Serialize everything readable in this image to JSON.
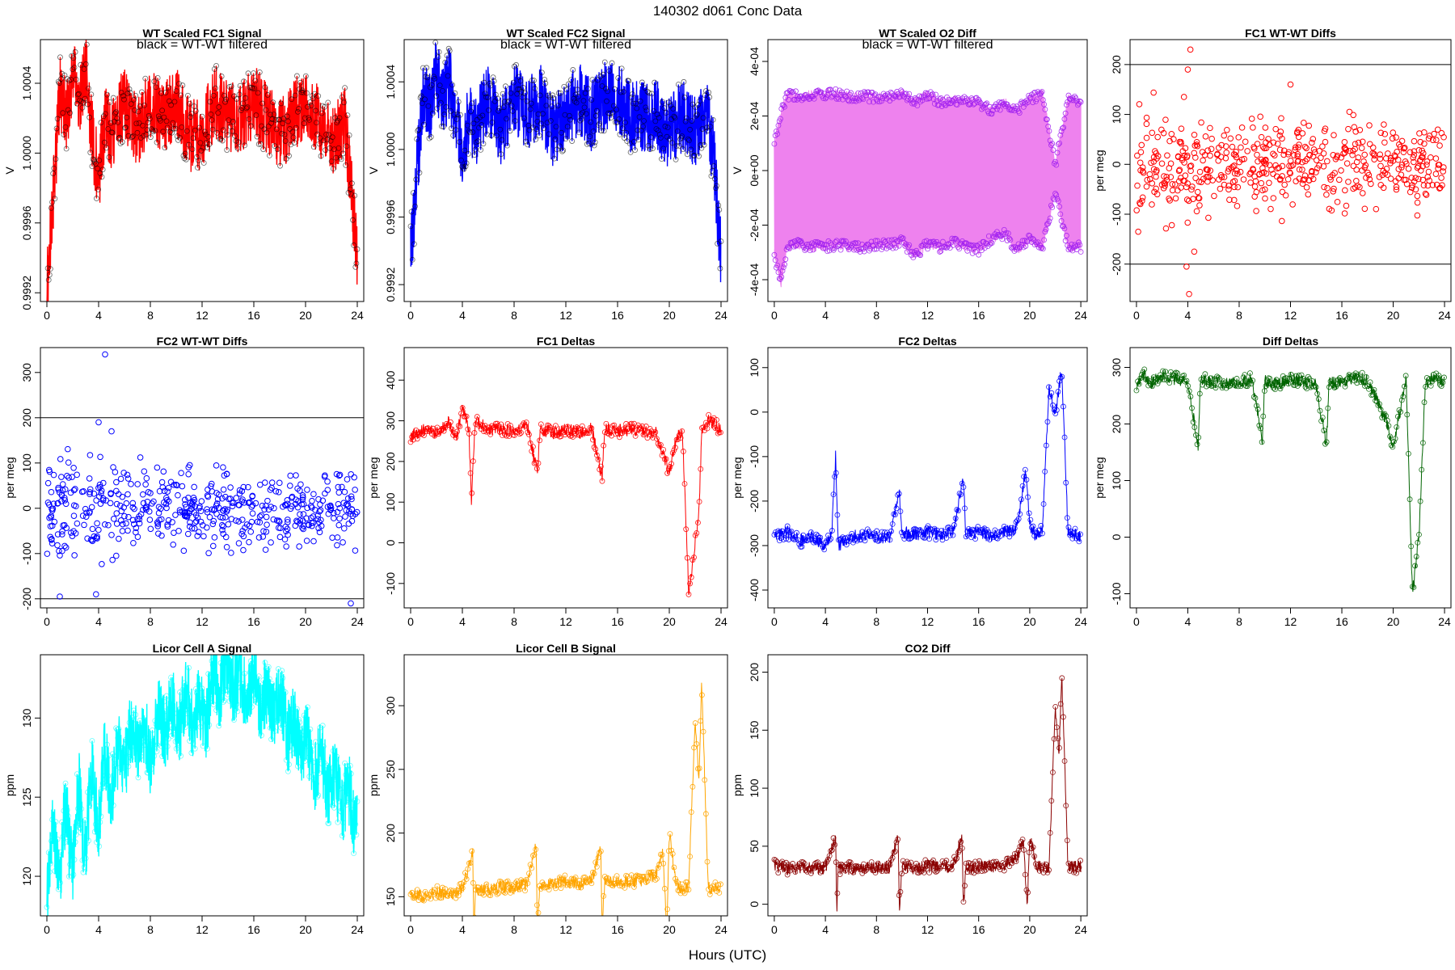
{
  "figure": {
    "title": "140302   d061   Conc Data",
    "xlabel": "Hours (UTC)",
    "x_ticks": [
      0,
      4,
      8,
      12,
      16,
      20,
      24
    ],
    "xlim": [
      -0.5,
      24.5
    ]
  },
  "chart_data": [
    {
      "id": "fc1-signal",
      "type": "line",
      "title": "WT Scaled FC1 Signal",
      "note": "black = WT-WT filtered",
      "ylabel": "V",
      "ylim": [
        0.99915,
        1.00065
      ],
      "y_ticks": [
        {
          "v": 0.9992,
          "label": "0.9992"
        },
        {
          "v": 0.9996,
          "label": "0.9996"
        },
        {
          "v": 1.0,
          "label": "1.0000"
        },
        {
          "v": 1.0004,
          "label": "1.0004"
        }
      ],
      "color": "#ff0000",
      "marker_color": "#000000",
      "series": [
        {
          "x": [
            0,
            0.5,
            1,
            1.5,
            2,
            2.5,
            3,
            3.5,
            4,
            4.5,
            5,
            6,
            7,
            8,
            9,
            10,
            11,
            12,
            13,
            14,
            15,
            16,
            17,
            18,
            19,
            20,
            21,
            22,
            23,
            23.5,
            24
          ],
          "y": [
            0.99925,
            0.99975,
            1.00035,
            1.0002,
            1.00045,
            1.0003,
            1.0005,
            1.0001,
            0.99985,
            1.0002,
            1.0001,
            1.0003,
            1.0001,
            1.0003,
            1.0002,
            1.0003,
            1.0001,
            1.0001,
            1.0003,
            1.0002,
            1.0002,
            1.0003,
            1.0002,
            1.0001,
            1.0002,
            1.0003,
            1.0002,
            1.00005,
            1.0002,
            0.99985,
            0.99935
          ]
        }
      ]
    },
    {
      "id": "fc2-signal",
      "type": "line",
      "title": "WT Scaled FC2 Signal",
      "note": "black = WT-WT filtered",
      "ylabel": "V",
      "ylim": [
        0.9991,
        1.00065
      ],
      "y_ticks": [
        {
          "v": 0.9992,
          "label": "0.9992"
        },
        {
          "v": 0.9996,
          "label": "0.9996"
        },
        {
          "v": 1.0,
          "label": "1.0000"
        },
        {
          "v": 1.0004,
          "label": "1.0004"
        }
      ],
      "color": "#0000ff",
      "marker_color": "#000000",
      "series": [
        {
          "x": [
            0,
            0.5,
            1,
            1.5,
            2,
            2.5,
            3,
            3.5,
            4,
            4.5,
            5,
            6,
            7,
            8,
            9,
            10,
            11,
            12,
            13,
            14,
            15,
            16,
            17,
            18,
            19,
            20,
            21,
            22,
            23,
            23.5,
            24
          ],
          "y": [
            0.99935,
            0.9999,
            1.0003,
            1.00025,
            1.00045,
            1.0003,
            1.0004,
            1.0002,
            0.99995,
            1.0002,
            1.0001,
            1.0003,
            1.0001,
            1.0003,
            1.0002,
            1.0003,
            1.0001,
            1.0002,
            1.0003,
            1.0002,
            1.0003,
            1.0003,
            1.0002,
            1.0002,
            1.0002,
            1.0001,
            1.0002,
            1.0001,
            1.0002,
            0.9999,
            0.99935
          ]
        }
      ]
    },
    {
      "id": "o2-diff",
      "type": "line",
      "title": "WT Scaled O2 Diff",
      "note": "black = WT-WT filtered",
      "ylabel": "V",
      "ylim": [
        -0.00048,
        0.00048
      ],
      "y_ticks": [
        {
          "v": -0.0004,
          "label": "-4e-04"
        },
        {
          "v": -0.0002,
          "label": "-2e-04"
        },
        {
          "v": 0,
          "label": "0e+00"
        },
        {
          "v": 0.0002,
          "label": "2e-04"
        },
        {
          "v": 0.0004,
          "label": "4e-04"
        }
      ],
      "color": "#ee82ee",
      "marker_color": "#a020f0",
      "series": [
        {
          "name": "upper",
          "x": [
            0,
            0.5,
            1,
            2,
            3,
            4,
            5,
            6,
            7,
            8,
            9,
            10,
            11,
            12,
            13,
            14,
            15,
            16,
            17,
            18,
            19,
            20,
            21,
            22,
            23,
            24
          ],
          "y": [
            0.0001,
            0.0002,
            0.00028,
            0.00027,
            0.00028,
            0.00028,
            0.00028,
            0.00027,
            0.00027,
            0.00027,
            0.00027,
            0.00028,
            0.00025,
            0.00028,
            0.00025,
            0.00026,
            0.00025,
            0.00025,
            0.00022,
            0.00025,
            0.00022,
            0.00026,
            0.00028,
            2e-05,
            0.00026,
            0.00025
          ]
        },
        {
          "name": "lower",
          "x": [
            0,
            0.5,
            1,
            2,
            3,
            4,
            5,
            6,
            7,
            8,
            9,
            10,
            11,
            12,
            13,
            14,
            15,
            16,
            17,
            18,
            19,
            20,
            21,
            22,
            23,
            24
          ],
          "y": [
            -0.0003,
            -0.00042,
            -0.00028,
            -0.00027,
            -0.00028,
            -0.00028,
            -0.00027,
            -0.00028,
            -0.00028,
            -0.00027,
            -0.00027,
            -0.00026,
            -0.00031,
            -0.00027,
            -0.00028,
            -0.00026,
            -0.00028,
            -0.00029,
            -0.00025,
            -0.00023,
            -0.00029,
            -0.00025,
            -0.00028,
            -8e-05,
            -0.00028,
            -0.00028
          ]
        }
      ]
    },
    {
      "id": "fc1-wtwt",
      "type": "scatter",
      "title": "FC1 WT-WT Diffs",
      "ylabel": "per meg",
      "ylim": [
        -275,
        250
      ],
      "y_ticks": [
        {
          "v": -200,
          "label": "-200"
        },
        {
          "v": -100,
          "label": "-100"
        },
        {
          "v": 0,
          "label": "0"
        },
        {
          "v": 100,
          "label": "100"
        },
        {
          "v": 200,
          "label": "200"
        }
      ],
      "hlines": [
        200,
        -200
      ],
      "color": "#ff0000",
      "spread": 50,
      "seed": 11,
      "outliers": [
        {
          "x": 4,
          "y": 190
        },
        {
          "x": 4.2,
          "y": 230
        },
        {
          "x": 3.9,
          "y": -205
        },
        {
          "x": 4.1,
          "y": -260
        },
        {
          "x": 3.7,
          "y": 135
        },
        {
          "x": 12,
          "y": 160
        },
        {
          "x": 4.5,
          "y": -175
        }
      ]
    },
    {
      "id": "fc2-wtwt",
      "type": "scatter",
      "title": "FC2 WT-WT Diffs",
      "ylabel": "per meg",
      "ylim": [
        -220,
        355
      ],
      "y_ticks": [
        {
          "v": -200,
          "label": "-200"
        },
        {
          "v": -100,
          "label": "-100"
        },
        {
          "v": 0,
          "label": "0"
        },
        {
          "v": 100,
          "label": "100"
        },
        {
          "v": 200,
          "label": "200"
        },
        {
          "v": 300,
          "label": "300"
        }
      ],
      "hlines": [
        200,
        -200
      ],
      "color": "#0000ff",
      "spread": 50,
      "seed": 23,
      "outliers": [
        {
          "x": 4.5,
          "y": 340
        },
        {
          "x": 4,
          "y": 190
        },
        {
          "x": 1,
          "y": -195
        },
        {
          "x": 3.8,
          "y": -190
        },
        {
          "x": 23.5,
          "y": -210
        },
        {
          "x": 5,
          "y": 170
        }
      ]
    },
    {
      "id": "fc1-deltas",
      "type": "line",
      "title": "FC1 Deltas",
      "ylabel": "per meg",
      "ylim": [
        -160,
        480
      ],
      "y_ticks": [
        {
          "v": -100,
          "label": "-100"
        },
        {
          "v": 0,
          "label": "0"
        },
        {
          "v": 100,
          "label": "100"
        },
        {
          "v": 200,
          "label": "200"
        },
        {
          "v": 300,
          "label": "300"
        },
        {
          "v": 400,
          "label": "400"
        }
      ],
      "color": "#ff0000",
      "series": [
        {
          "x": [
            0,
            1,
            2,
            3,
            3.5,
            4,
            4.5,
            4.7,
            5,
            6,
            7,
            8,
            9,
            9.8,
            10,
            11,
            12,
            13,
            14,
            14.8,
            15,
            16,
            17,
            18,
            19,
            19.5,
            20,
            20.5,
            21,
            21.5,
            22,
            22.3,
            22.5,
            23,
            24
          ],
          "y": [
            260,
            280,
            270,
            300,
            250,
            330,
            280,
            100,
            300,
            280,
            280,
            275,
            290,
            170,
            280,
            270,
            280,
            270,
            280,
            160,
            280,
            275,
            280,
            275,
            270,
            220,
            170,
            250,
            280,
            -120,
            0,
            80,
            270,
            300,
            280
          ]
        }
      ]
    },
    {
      "id": "fc2-deltas",
      "type": "line",
      "title": "FC2 Deltas",
      "ylabel": "per meg",
      "ylim": [
        -440,
        145
      ],
      "y_ticks": [
        {
          "v": -400,
          "label": "-400"
        },
        {
          "v": -300,
          "label": "-300"
        },
        {
          "v": -200,
          "label": "-200"
        },
        {
          "v": -100,
          "label": "-100"
        },
        {
          "v": 0,
          "label": "0"
        },
        {
          "v": 100,
          "label": "100"
        }
      ],
      "color": "#0000ff",
      "series": [
        {
          "x": [
            0,
            1,
            2,
            3,
            4,
            4.5,
            4.8,
            5,
            6,
            7,
            8,
            9,
            9.8,
            10,
            11,
            12,
            13,
            14,
            14.8,
            15,
            16,
            17,
            18,
            19,
            19.7,
            20,
            20.5,
            21,
            21.5,
            22,
            22.5,
            23,
            24
          ],
          "y": [
            -280,
            -270,
            -290,
            -280,
            -300,
            -270,
            -100,
            -300,
            -280,
            -275,
            -280,
            -285,
            -180,
            -270,
            -275,
            -270,
            -275,
            -270,
            -150,
            -275,
            -270,
            -280,
            -270,
            -260,
            -130,
            -250,
            -280,
            -260,
            60,
            -10,
            100,
            -270,
            -280
          ]
        }
      ]
    },
    {
      "id": "diff-deltas",
      "type": "line",
      "title": "Diff Deltas",
      "ylabel": "per meg",
      "ylim": [
        -125,
        335
      ],
      "y_ticks": [
        {
          "v": -100,
          "label": "-100"
        },
        {
          "v": 0,
          "label": "0"
        },
        {
          "v": 100,
          "label": "100"
        },
        {
          "v": 200,
          "label": "200"
        },
        {
          "v": 300,
          "label": "300"
        }
      ],
      "color": "#006400",
      "series": [
        {
          "x": [
            0,
            0.5,
            1,
            2,
            3,
            4,
            4.8,
            5,
            6,
            7,
            8,
            9,
            9.8,
            10,
            11,
            12,
            13,
            14,
            14.8,
            15,
            16,
            17,
            18,
            19,
            19.5,
            20,
            20.5,
            21,
            21.5,
            22,
            22.5,
            23,
            24
          ],
          "y": [
            260,
            290,
            270,
            285,
            280,
            275,
            160,
            280,
            275,
            270,
            275,
            280,
            170,
            275,
            270,
            280,
            275,
            270,
            160,
            275,
            270,
            285,
            275,
            230,
            200,
            160,
            220,
            280,
            -100,
            0,
            270,
            280,
            275
          ]
        }
      ]
    },
    {
      "id": "licor-a",
      "type": "line",
      "title": "Licor Cell A Signal",
      "ylabel": "ppm",
      "ylim": [
        117.5,
        134
      ],
      "y_ticks": [
        {
          "v": 120,
          "label": "120"
        },
        {
          "v": 125,
          "label": "125"
        },
        {
          "v": 130,
          "label": "130"
        }
      ],
      "color": "#00ffff",
      "series": [
        {
          "x": [
            0,
            0.5,
            1,
            1.5,
            2,
            2.5,
            3,
            3.5,
            4,
            4.5,
            5,
            6,
            7,
            8,
            9,
            10,
            11,
            12,
            13,
            14,
            15,
            16,
            17,
            18,
            19,
            20,
            21,
            22,
            23,
            24
          ],
          "y": [
            118,
            123,
            120,
            124,
            121,
            125,
            122,
            126,
            124,
            127,
            126,
            128,
            129,
            128,
            130,
            130,
            131,
            130,
            132,
            133,
            132,
            132,
            131,
            131,
            129,
            128,
            127,
            126,
            125,
            124
          ]
        }
      ]
    },
    {
      "id": "licor-b",
      "type": "line",
      "title": "Licor Cell B Signal",
      "ylabel": "ppm",
      "ylim": [
        135,
        340
      ],
      "y_ticks": [
        {
          "v": 150,
          "label": "150"
        },
        {
          "v": 200,
          "label": "200"
        },
        {
          "v": 250,
          "label": "250"
        },
        {
          "v": 300,
          "label": "300"
        }
      ],
      "color": "#ffa500",
      "series": [
        {
          "x": [
            0,
            1,
            2,
            3,
            4,
            4.8,
            4.9,
            5,
            6,
            7,
            8,
            9,
            9.7,
            9.8,
            10,
            11,
            12,
            13,
            14,
            14.7,
            14.8,
            15,
            16,
            17,
            18,
            19,
            19.5,
            19.8,
            20,
            20.5,
            21,
            21.5,
            22,
            22.3,
            22.5,
            23,
            24
          ],
          "y": [
            152,
            150,
            154,
            151,
            156,
            185,
            122,
            156,
            155,
            158,
            157,
            160,
            190,
            126,
            159,
            160,
            162,
            160,
            163,
            189,
            125,
            161,
            162,
            162,
            163,
            168,
            185,
            122,
            200,
            160,
            156,
            158,
            290,
            240,
            320,
            157,
            156
          ]
        }
      ]
    },
    {
      "id": "co2-diff",
      "type": "line",
      "title": "CO2 Diff",
      "ylabel": "ppm",
      "ylim": [
        -10,
        215
      ],
      "y_ticks": [
        {
          "v": 0,
          "label": "0"
        },
        {
          "v": 50,
          "label": "50"
        },
        {
          "v": 100,
          "label": "100"
        },
        {
          "v": 150,
          "label": "150"
        },
        {
          "v": 200,
          "label": "200"
        }
      ],
      "color": "#8b0000",
      "series": [
        {
          "x": [
            0,
            1,
            2,
            3,
            4,
            4.8,
            4.9,
            5,
            6,
            7,
            8,
            9,
            9.7,
            9.8,
            10,
            11,
            12,
            13,
            14,
            14.7,
            14.8,
            15,
            16,
            17,
            18,
            19,
            19.5,
            19.8,
            20,
            20.5,
            21,
            21.5,
            22,
            22.3,
            22.5,
            23,
            24
          ],
          "y": [
            33,
            31,
            31,
            31,
            31,
            58,
            -5,
            31,
            31,
            31,
            32,
            32,
            58,
            -5,
            32,
            32,
            33,
            32,
            32,
            57,
            -5,
            32,
            32,
            33,
            33,
            40,
            55,
            -3,
            60,
            32,
            32,
            32,
            170,
            130,
            200,
            32,
            32
          ]
        }
      ]
    }
  ]
}
